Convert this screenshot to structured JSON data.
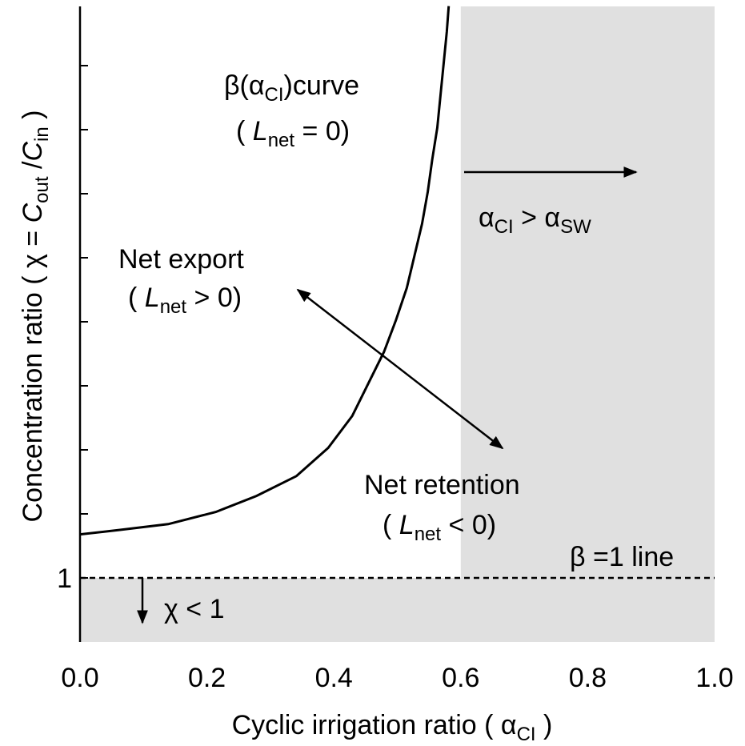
{
  "chart_data": {
    "type": "line",
    "x_label": [
      {
        "t": "Cyclic irrigation ratio ( α"
      },
      {
        "t": "CI",
        "sub": true
      },
      {
        "t": " )"
      }
    ],
    "y_label": [
      {
        "t": "Concentration ratio ( χ = "
      },
      {
        "t": "C",
        "italic": true
      },
      {
        "t": "out",
        "sub": true
      },
      {
        "t": " /"
      },
      {
        "t": "C",
        "italic": true
      },
      {
        "t": "in",
        "sub": true
      },
      {
        "t": " )"
      }
    ],
    "xlim": [
      0,
      1.0
    ],
    "ylim": [
      0,
      10
    ],
    "xticks": [
      {
        "value": 0,
        "label": "0.0"
      },
      0.2,
      0.4,
      0.6,
      0.8,
      {
        "value": 1.0,
        "label": "1.0"
      }
    ],
    "yticks": [
      1
    ],
    "yticks_unlabeled": [
      2,
      3,
      4,
      5,
      6,
      7,
      8,
      9
    ],
    "series": [
      {
        "color": "#000000",
        "x": [
          0,
          0.063,
          0.139,
          0.214,
          0.278,
          0.341,
          0.391,
          0.429,
          0.454,
          0.479,
          0.498,
          0.515,
          0.527,
          0.539,
          0.548,
          0.555,
          0.563,
          0.568,
          0.573,
          0.578,
          0.581
        ],
        "values": [
          1.68,
          1.75,
          1.84,
          2.03,
          2.28,
          2.59,
          3.03,
          3.53,
          4.03,
          4.53,
          5.03,
          5.53,
          6.03,
          6.53,
          7.03,
          7.53,
          8.03,
          8.53,
          9.03,
          9.53,
          9.93
        ]
      }
    ],
    "shaded_x": [
      0.6,
      1.0
    ],
    "shaded_y": [
      0,
      1
    ],
    "shade_color": "#e0e0e0",
    "reference_line_y": 1,
    "annotations": [
      {
        "segments": [
          {
            "t": "β(α"
          },
          {
            "t": "CI",
            "sub": true
          },
          {
            "t": ")curve"
          }
        ]
      },
      {
        "segments": [
          {
            "t": "( "
          },
          {
            "t": "L",
            "italic": true
          },
          {
            "t": "net",
            "sub": true
          },
          {
            "t": " = 0)"
          }
        ]
      },
      {
        "segments": [
          {
            "t": "α"
          },
          {
            "t": "CI",
            "sub": true
          },
          {
            "t": " > α"
          },
          {
            "t": "SW",
            "sub": true
          }
        ]
      },
      {
        "segments": [
          {
            "t": "Net export"
          }
        ]
      },
      {
        "segments": [
          {
            "t": "( "
          },
          {
            "t": "L",
            "italic": true
          },
          {
            "t": "net",
            "sub": true
          },
          {
            "t": " > 0)"
          }
        ]
      },
      {
        "segments": [
          {
            "t": "Net retention"
          }
        ]
      },
      {
        "segments": [
          {
            "t": "( "
          },
          {
            "t": "L",
            "italic": true
          },
          {
            "t": "net",
            "sub": true
          },
          {
            "t": " < 0)"
          }
        ]
      },
      {
        "segments": [
          {
            "t": "β =1 line"
          }
        ]
      },
      {
        "segments": [
          {
            "t": "χ < 1"
          }
        ]
      }
    ]
  }
}
